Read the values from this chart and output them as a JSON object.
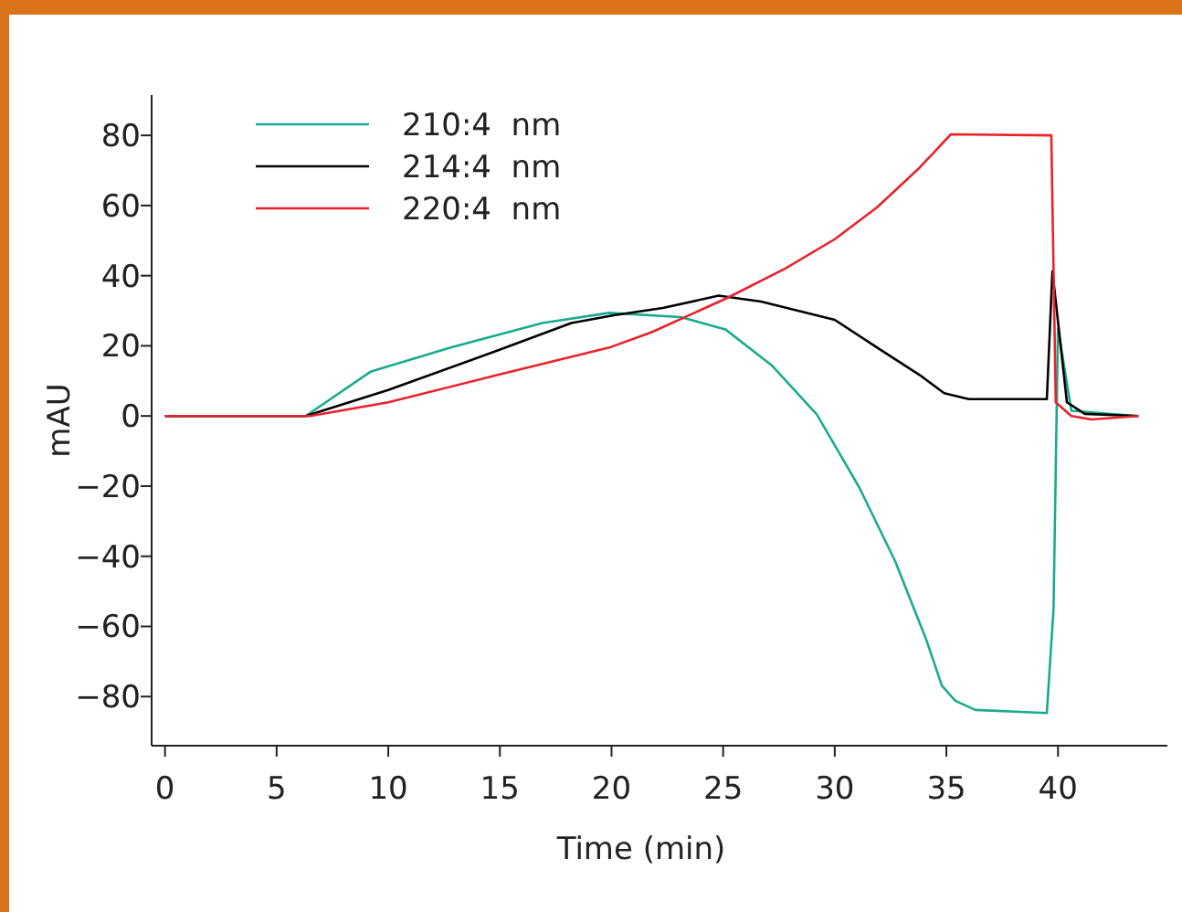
{
  "chart_data": {
    "type": "line",
    "xlabel": "Time (min)",
    "ylabel": "mAU",
    "xlim": [
      -0.6,
      44.9
    ],
    "ylim": [
      -94,
      91.5
    ],
    "xticks": [
      0,
      5,
      10,
      15,
      20,
      25,
      30,
      35,
      40
    ],
    "yticks": [
      {
        "value": -80,
        "label": "−80"
      },
      {
        "value": -60,
        "label": "−60"
      },
      {
        "value": -40,
        "label": "−40"
      },
      {
        "value": -20,
        "label": "−20"
      },
      0,
      20,
      40,
      60,
      80
    ],
    "grid": false,
    "legend": "top left",
    "marker": "none",
    "line_style": "solid",
    "series": [
      {
        "name": "210:4  nm",
        "color": "#1aab8f",
        "x": [
          0,
          6.3,
          9.2,
          12.8,
          16.9,
          19.9,
          23.1,
          25.1,
          27.2,
          29.2,
          31.1,
          32.7,
          34.1,
          34.8,
          35.4,
          36.3,
          39.5,
          39.8,
          40.0,
          40.6,
          43.6
        ],
        "values": [
          0,
          0,
          12.6,
          19.5,
          26.5,
          29.4,
          28.2,
          24.7,
          14.3,
          0.4,
          -20.4,
          -41.3,
          -63.8,
          -76.9,
          -81.2,
          -83.8,
          -84.7,
          -55,
          25,
          1.5,
          0
        ]
      },
      {
        "name": "214:4  nm",
        "color": "#000000",
        "x": [
          0,
          6.3,
          10.0,
          14.9,
          18.2,
          20.1,
          22.3,
          24.8,
          26.7,
          30.0,
          31.9,
          33.8,
          34.9,
          36.0,
          39.5,
          39.75,
          40.4,
          41.2,
          43.6
        ],
        "values": [
          0,
          0,
          7.4,
          18.7,
          26.5,
          28.7,
          30.8,
          34.3,
          32.6,
          27.4,
          19.5,
          11.7,
          6.5,
          4.8,
          4.8,
          41.3,
          3.9,
          0.6,
          0
        ]
      },
      {
        "name": "220:4  nm",
        "color": "#e8232a",
        "x": [
          0,
          6.5,
          10.0,
          14.9,
          19.9,
          21.8,
          25.1,
          27.8,
          30.0,
          31.9,
          33.8,
          35.2,
          39.7,
          39.9,
          40.6,
          41.5,
          43.6
        ],
        "values": [
          0,
          0,
          3.9,
          11.7,
          19.5,
          23.9,
          33.4,
          42.1,
          50.4,
          59.5,
          70.8,
          80.3,
          80,
          3.9,
          0,
          -1,
          0
        ]
      }
    ]
  }
}
